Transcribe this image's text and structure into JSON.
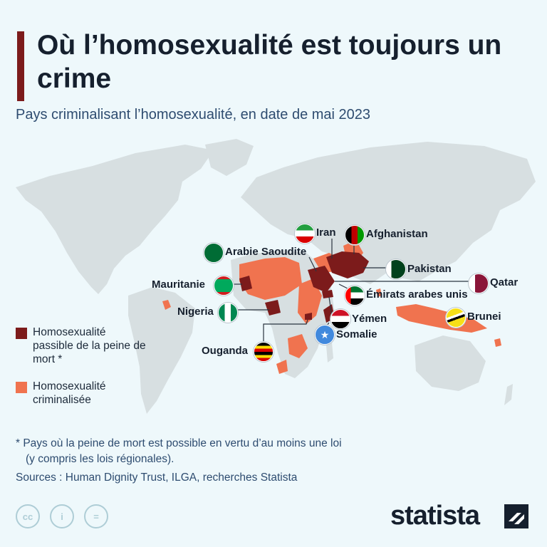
{
  "title": "Où l’homosexualité est toujours un crime",
  "subtitle": "Pays criminalisant l’homosexualité, en date de mai 2023",
  "colors": {
    "death_penalty": "#7c1b1b",
    "criminalized": "#f0734f",
    "land": "#d7dfe1",
    "background": "#eef8fb"
  },
  "countries": {
    "iran": "Iran",
    "afghanistan": "Afghanistan",
    "saudi": "Arabie Saoudite",
    "pakistan": "Pakistan",
    "qatar": "Qatar",
    "mauritania": "Mauritanie",
    "uae": "Émirats arabes unis",
    "nigeria": "Nigeria",
    "yemen": "Yémen",
    "brunei": "Brunei",
    "somalia": "Somalie",
    "uganda": "Ouganda"
  },
  "legend": {
    "death_label": "Homosexualité passible de la peine de mort *",
    "criminal_label": "Homosexualité criminalisée"
  },
  "footnote": {
    "line1": "* Pays où la peine de mort est possible en vertu d’au moins une loi",
    "line2": "(y compris les lois régionales)."
  },
  "sources": "Sources : Human Dignity Trust, ILGA, recherches Statista",
  "license_icons": [
    "cc-icon",
    "person-icon",
    "equals-icon"
  ],
  "license_glyphs": {
    "cc": "cc",
    "by": "i",
    "nd": "="
  },
  "brand": "statista"
}
